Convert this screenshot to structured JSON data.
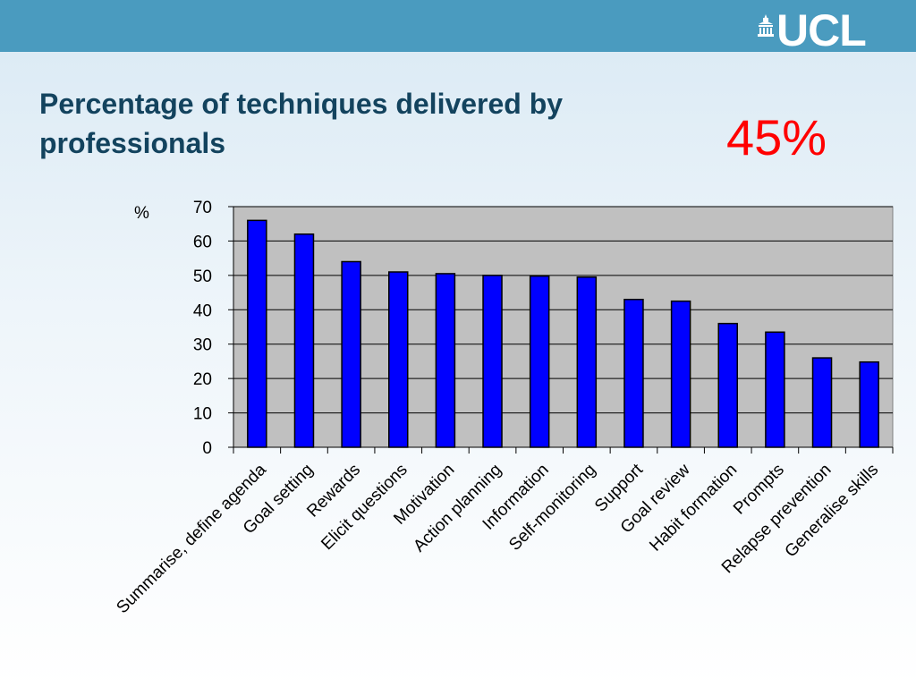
{
  "brand": {
    "logo_text": "UCL",
    "logo_icon": "portico-icon",
    "bar_color": "#4a9bbf"
  },
  "slide": {
    "title": "Percentage of techniques delivered by professionals",
    "headline_stat": "45%",
    "headline_color": "#ff0000",
    "title_color": "#13435e"
  },
  "chart_data": {
    "type": "bar",
    "title": "",
    "xlabel": "",
    "ylabel": "%",
    "ylim": [
      0,
      70
    ],
    "yticks": [
      0,
      10,
      20,
      30,
      40,
      50,
      60,
      70
    ],
    "grid": true,
    "plot_background": "#c0c0c0",
    "bar_color": "#0000ff",
    "categories": [
      "Summarise, define agenda",
      "Goal setting",
      "Rewards",
      "Elicit questions",
      "Motivation",
      "Action planning",
      "Information",
      "Self-monitoring",
      "Support",
      "Goal review",
      "Habit formation",
      "Prompts",
      "Relapse prevention",
      "Generalise skills"
    ],
    "values": [
      66,
      62,
      54,
      51,
      50.5,
      50,
      49.8,
      49.5,
      43,
      42.5,
      36,
      33.5,
      26,
      24.8
    ]
  }
}
